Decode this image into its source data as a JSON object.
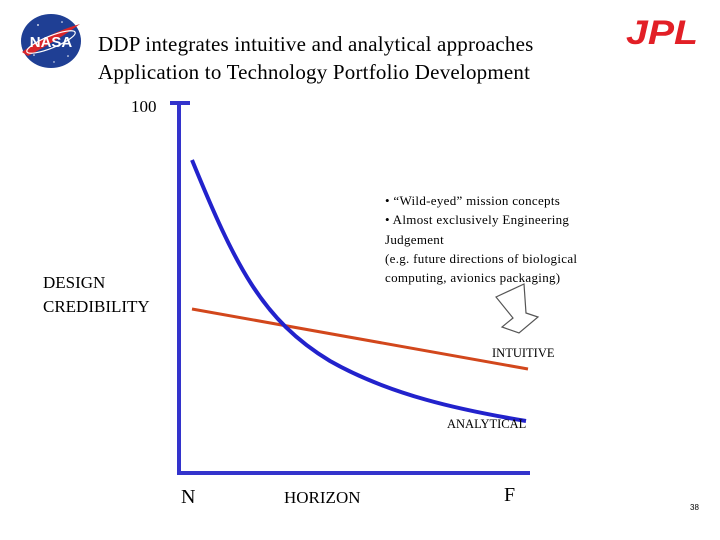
{
  "header": {
    "title_line1": "DDP integrates intuitive and analytical approaches",
    "title_line2": "Application to Technology Portfolio Development",
    "nasa_logo_text": "NASA",
    "jpl_logo_text": "JPL"
  },
  "axes": {
    "y_max_label": "100",
    "y_label_line1": "DESIGN",
    "y_label_line2": "CREDIBILITY",
    "x_label_left": "N",
    "x_label_center": "HORIZON",
    "x_label_right": "F"
  },
  "curves": {
    "intuitive_label": "INTUITIVE",
    "analytical_label": "ANALYTICAL",
    "intuitive_color": "#d2471c",
    "analytical_color": "#2020cc"
  },
  "annotation": {
    "lines": [
      "• “Wild-eyed” mission concepts",
      "• Almost exclusively Engineering",
      "Judgement",
      "(e.g. future directions of biological",
      "computing, avionics packaging)"
    ]
  },
  "footer": {
    "page_number": "38"
  }
}
